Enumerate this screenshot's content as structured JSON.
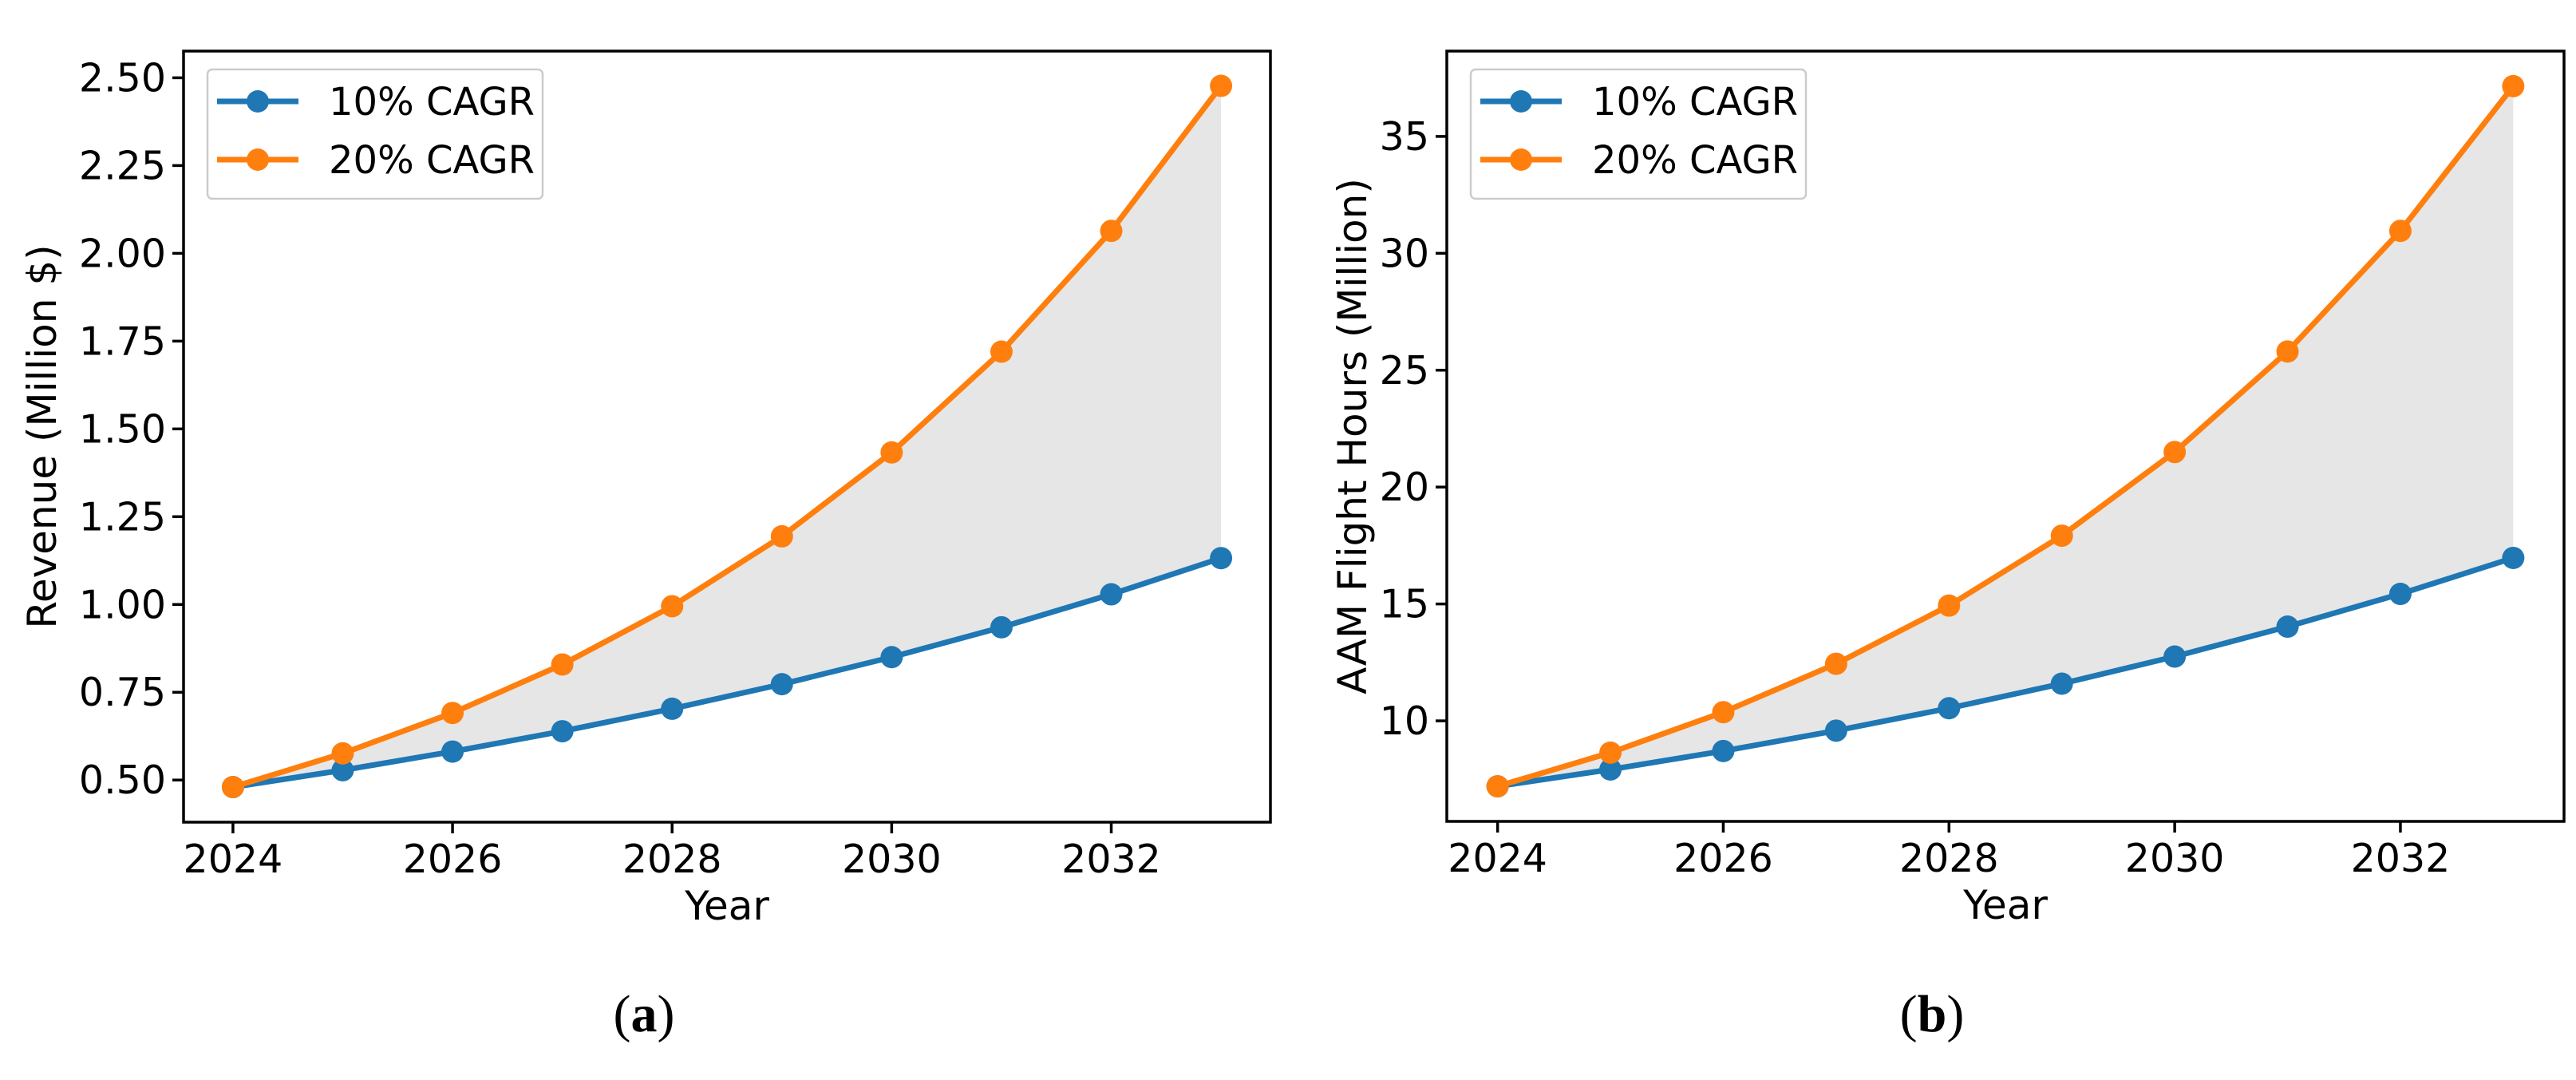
{
  "figure": {
    "background": "#ffffff",
    "text_color": "#000000",
    "captions": {
      "open": "(",
      "close": ")",
      "a_letter": "a",
      "b_letter": "b"
    }
  },
  "chart_data": [
    {
      "id": "a",
      "type": "line",
      "title": "",
      "xlabel": "Year",
      "ylabel": "Revenue (Million $)",
      "x": [
        2024,
        2025,
        2026,
        2027,
        2028,
        2029,
        2030,
        2031,
        2032,
        2033
      ],
      "series": [
        {
          "name": "10% CAGR",
          "color": "#1f77b4",
          "values": [
            0.48,
            0.528,
            0.581,
            0.639,
            0.703,
            0.773,
            0.85,
            0.935,
            1.029,
            1.132
          ]
        },
        {
          "name": "20% CAGR",
          "color": "#ff7f0e",
          "values": [
            0.48,
            0.576,
            0.691,
            0.829,
            0.995,
            1.194,
            1.433,
            1.72,
            2.064,
            2.477
          ]
        }
      ],
      "fill_between": {
        "upper": "20% CAGR",
        "lower": "10% CAGR",
        "color": "#e6e6e6"
      },
      "xlim": [
        2023.55,
        2033.45
      ],
      "ylim": [
        0.38,
        2.576
      ],
      "xticks": {
        "values": [
          2024,
          2026,
          2028,
          2030,
          2032
        ],
        "labels": [
          "2024",
          "2026",
          "2028",
          "2030",
          "2032"
        ]
      },
      "yticks": {
        "values": [
          0.5,
          0.75,
          1.0,
          1.25,
          1.5,
          1.75,
          2.0,
          2.25,
          2.5
        ],
        "labels": [
          "0.50",
          "0.75",
          "1.00",
          "1.25",
          "1.50",
          "1.75",
          "2.00",
          "2.25",
          "2.50"
        ]
      },
      "grid": false,
      "legend": {
        "position": "upper left",
        "entries": [
          "10% CAGR",
          "20% CAGR"
        ]
      }
    },
    {
      "id": "b",
      "type": "line",
      "title": "",
      "xlabel": "Year",
      "ylabel": "AAM Flight Hours (Million)",
      "x": [
        2024,
        2025,
        2026,
        2027,
        2028,
        2029,
        2030,
        2031,
        2032,
        2033
      ],
      "series": [
        {
          "name": "10% CAGR",
          "color": "#1f77b4",
          "values": [
            7.2,
            7.92,
            8.71,
            9.58,
            10.54,
            11.59,
            12.75,
            14.03,
            15.43,
            16.97
          ]
        },
        {
          "name": "20% CAGR",
          "color": "#ff7f0e",
          "values": [
            7.2,
            8.64,
            10.37,
            12.44,
            14.93,
            17.92,
            21.5,
            25.8,
            30.96,
            37.15
          ]
        }
      ],
      "fill_between": {
        "upper": "20% CAGR",
        "lower": "10% CAGR",
        "color": "#e6e6e6"
      },
      "xlim": [
        2023.55,
        2033.45
      ],
      "ylim": [
        5.7,
        38.65
      ],
      "xticks": {
        "values": [
          2024,
          2026,
          2028,
          2030,
          2032
        ],
        "labels": [
          "2024",
          "2026",
          "2028",
          "2030",
          "2032"
        ]
      },
      "yticks": {
        "values": [
          10,
          15,
          20,
          25,
          30,
          35
        ],
        "labels": [
          "10",
          "15",
          "20",
          "25",
          "30",
          "35"
        ]
      },
      "grid": false,
      "legend": {
        "position": "upper left",
        "entries": [
          "10% CAGR",
          "20% CAGR"
        ]
      }
    }
  ]
}
